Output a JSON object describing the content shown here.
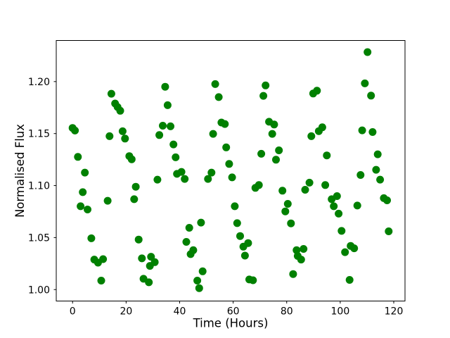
{
  "figure": {
    "background_color": "#ffffff",
    "frame_color": "#000000"
  },
  "chart_data": {
    "type": "scatter",
    "title": "",
    "xlabel": "Time (Hours)",
    "ylabel": "Normalised Flux",
    "marker_color": "#008000",
    "marker_diameter_px": 11,
    "grid": false,
    "legend": null,
    "xlim": [
      -6.1,
      124.2
    ],
    "ylim": [
      0.989,
      1.2395
    ],
    "xticks": [
      0,
      20,
      40,
      60,
      80,
      100,
      120
    ],
    "xtick_labels": [
      "0",
      "20",
      "40",
      "60",
      "80",
      "100",
      "120"
    ],
    "yticks": [
      1.0,
      1.05,
      1.1,
      1.15,
      1.2
    ],
    "ytick_labels": [
      "1.00",
      "1.05",
      "1.10",
      "1.15",
      "1.20"
    ],
    "x": [
      0.0,
      0.9,
      2.0,
      3.0,
      3.8,
      4.6,
      5.6,
      7.0,
      8.1,
      9.5,
      11.4,
      10.7,
      13.1,
      14.5,
      15.9,
      16.8,
      17.8,
      13.8,
      18.7,
      19.6,
      21.2,
      22.1,
      23.6,
      23.0,
      24.7,
      25.9,
      26.5,
      28.5,
      29.3,
      28.9,
      30.7,
      31.7,
      32.4,
      33.7,
      36.6,
      34.6,
      35.5,
      37.7,
      38.5,
      39.0,
      40.7,
      41.9,
      43.6,
      42.5,
      45.1,
      44.1,
      48.6,
      46.6,
      47.3,
      48.0,
      50.6,
      51.9,
      52.5,
      53.3,
      54.6,
      55.6,
      56.9,
      57.4,
      58.5,
      59.6,
      60.6,
      61.5,
      62.6,
      63.8,
      65.6,
      64.4,
      66.0,
      67.4,
      68.3,
      69.6,
      70.5,
      71.3,
      72.1,
      73.4,
      75.3,
      74.6,
      77.1,
      76.0,
      78.4,
      80.4,
      79.5,
      81.6,
      82.4,
      83.7,
      86.3,
      84.1,
      85.4,
      86.9,
      88.5,
      89.9,
      91.3,
      92.0,
      93.3,
      89.2,
      94.4,
      95.0,
      96.8,
      98.8,
      97.6,
      99.4,
      100.5,
      101.8,
      103.9,
      105.2,
      103.5,
      106.4,
      107.6,
      109.2,
      110.2,
      111.5,
      108.2,
      112.1,
      113.4,
      114.0,
      114.9,
      116.3,
      117.5,
      118.1
    ],
    "y": [
      1.1554,
      1.1529,
      1.1276,
      1.0801,
      1.0937,
      1.1125,
      1.077,
      1.0493,
      1.0289,
      1.0259,
      1.0293,
      1.0086,
      1.0854,
      1.1883,
      1.1789,
      1.1755,
      1.1719,
      1.1475,
      1.1522,
      1.1452,
      1.1283,
      1.1253,
      1.0989,
      1.0869,
      1.0481,
      1.03,
      1.0104,
      1.007,
      1.0316,
      1.0228,
      1.0264,
      1.1057,
      1.1486,
      1.1576,
      1.157,
      1.195,
      1.1773,
      1.1396,
      1.1272,
      1.1113,
      1.1132,
      1.1064,
      1.0594,
      1.0459,
      1.0379,
      1.0341,
      1.0176,
      1.0086,
      1.0014,
      1.0644,
      1.1064,
      1.1125,
      1.1497,
      1.1976,
      1.1851,
      1.1606,
      1.1592,
      1.1367,
      1.1208,
      1.1079,
      1.0801,
      1.0639,
      1.0515,
      1.0413,
      1.0447,
      1.0327,
      1.0097,
      1.009,
      1.0978,
      1.1005,
      1.1306,
      1.1863,
      1.1963,
      1.1614,
      1.1587,
      1.1497,
      1.1339,
      1.1249,
      1.0951,
      1.0824,
      1.0752,
      1.0637,
      1.0149,
      1.0379,
      1.0391,
      1.0323,
      1.0289,
      1.096,
      1.1028,
      1.1885,
      1.1912,
      1.1524,
      1.156,
      1.1475,
      1.1005,
      1.129,
      1.0869,
      1.0899,
      1.0801,
      1.073,
      1.0564,
      1.036,
      1.042,
      1.0397,
      1.0093,
      1.0808,
      1.1102,
      1.1983,
      1.2283,
      1.1865,
      1.1531,
      1.1515,
      1.1152,
      1.1301,
      1.1057,
      1.0879,
      1.0858,
      1.056
    ]
  }
}
